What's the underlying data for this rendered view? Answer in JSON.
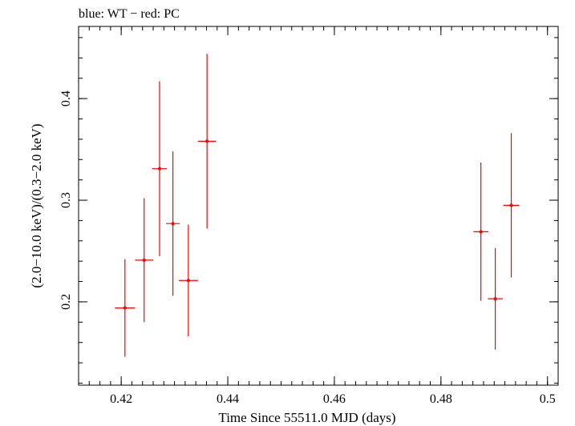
{
  "chart_data": {
    "type": "scatter",
    "title": "blue: WT − red: PC",
    "xlabel": "Time Since 55511.0 MJD (days)",
    "ylabel": "(2.0−10.0 keV)/(0.3−2.0 keV)",
    "xlim": [
      0.412,
      0.502
    ],
    "ylim": [
      0.118,
      0.471
    ],
    "x_ticks": [
      {
        "value": 0.42,
        "label": "0.42"
      },
      {
        "value": 0.44,
        "label": "0.44"
      },
      {
        "value": 0.46,
        "label": "0.46"
      },
      {
        "value": 0.48,
        "label": "0.48"
      },
      {
        "value": 0.5,
        "label": "0.5"
      }
    ],
    "x_minor_step": 0.002,
    "y_ticks": [
      {
        "value": 0.2,
        "label": "0.2"
      },
      {
        "value": 0.3,
        "label": "0.3"
      },
      {
        "value": 0.4,
        "label": "0.4"
      }
    ],
    "y_minor_step": 0.02,
    "grid": false,
    "series": [
      {
        "name": "PC",
        "color": "#ff0000",
        "points": [
          {
            "x": 0.4207,
            "xerr": 0.0019,
            "y": 0.194,
            "yerr_low": 0.048,
            "yerr_high": 0.048
          },
          {
            "x": 0.4243,
            "xerr": 0.0017,
            "y": 0.241,
            "yerr_low": 0.061,
            "yerr_high": 0.061
          },
          {
            "x": 0.4272,
            "xerr": 0.0014,
            "y": 0.331,
            "yerr_low": 0.086,
            "yerr_high": 0.086
          },
          {
            "x": 0.4297,
            "xerr": 0.0013,
            "y": 0.277,
            "yerr_low": 0.071,
            "yerr_high": 0.071
          },
          {
            "x": 0.4326,
            "xerr": 0.0018,
            "y": 0.221,
            "yerr_low": 0.055,
            "yerr_high": 0.055
          },
          {
            "x": 0.4361,
            "xerr": 0.0017,
            "y": 0.358,
            "yerr_low": 0.086,
            "yerr_high": 0.086
          },
          {
            "x": 0.4875,
            "xerr": 0.0014,
            "y": 0.269,
            "yerr_low": 0.068,
            "yerr_high": 0.068
          },
          {
            "x": 0.4902,
            "xerr": 0.0014,
            "y": 0.203,
            "yerr_low": 0.05,
            "yerr_high": 0.05
          },
          {
            "x": 0.4932,
            "xerr": 0.0015,
            "y": 0.295,
            "yerr_low": 0.071,
            "yerr_high": 0.071
          }
        ]
      }
    ]
  }
}
